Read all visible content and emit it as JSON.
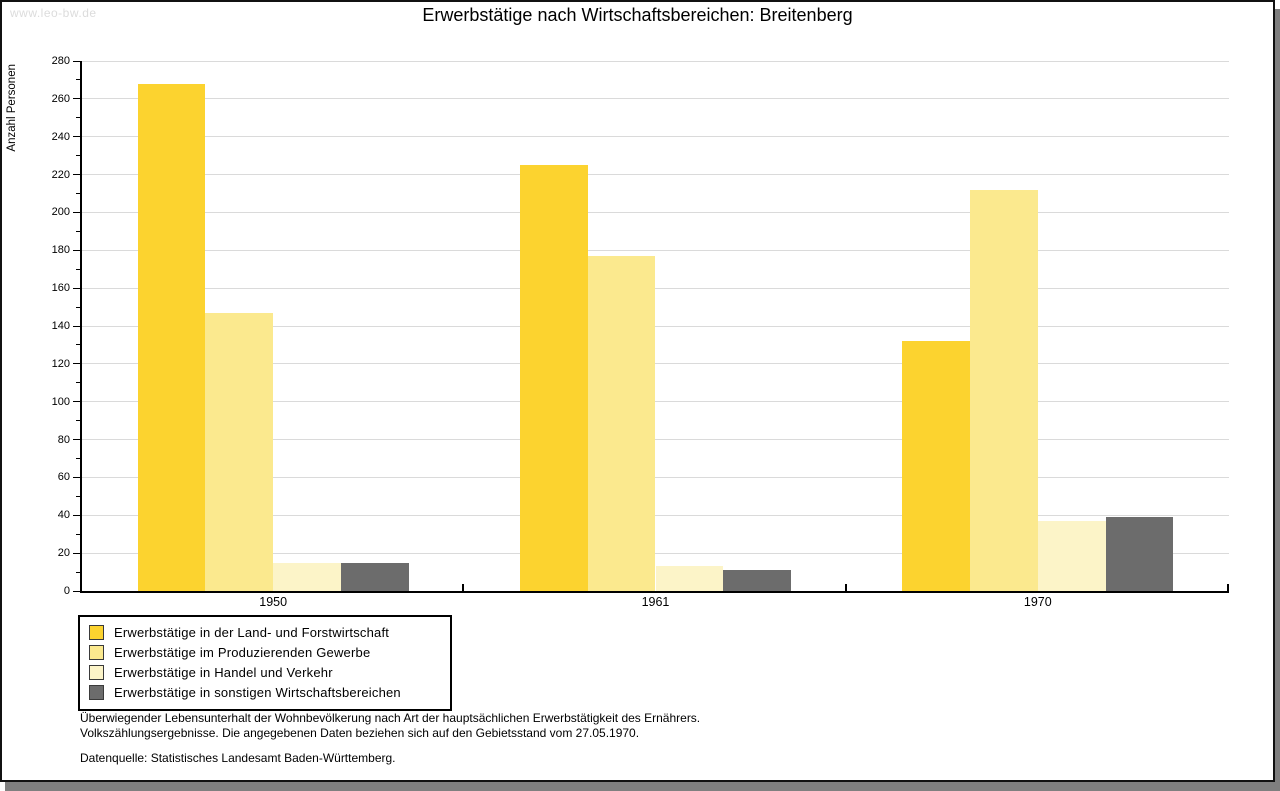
{
  "watermark": "www.leo-bw.de",
  "chart_data": {
    "type": "bar",
    "title": "Erwerbstätige nach Wirtschaftsbereichen: Breitenberg",
    "ylabel": "Anzahl Personen",
    "xlabel": "",
    "categories": [
      "1950",
      "1961",
      "1970"
    ],
    "series": [
      {
        "name": "Erwerbstätige in der Land- und Forstwirtschaft",
        "color": "#FCD32F",
        "values": [
          268,
          225,
          132
        ]
      },
      {
        "name": "Erwerbstätige im Produzierenden Gewerbe",
        "color": "#FBE98E",
        "values": [
          147,
          177,
          212
        ]
      },
      {
        "name": "Erwerbstätige in Handel und Verkehr",
        "color": "#FCF4C8",
        "values": [
          15,
          13,
          37
        ]
      },
      {
        "name": "Erwerbstätige in sonstigen Wirtschaftsbereichen",
        "color": "#6C6C6C",
        "values": [
          15,
          11,
          39
        ]
      }
    ],
    "ylim": [
      0,
      280
    ],
    "ytick_step": 20,
    "ytick_minor_step": 10,
    "grid": "horizontal-major",
    "gridline_color": "#dadada",
    "legend_position": "bottom-left"
  },
  "footnotes": {
    "line1": "Überwiegender Lebensunterhalt der Wohnbevölkerung nach Art der hauptsächlichen Erwerbstätigkeit des Ernährers.",
    "line2": "Volkszählungsergebnisse. Die angegebenen Daten beziehen sich auf den Gebietsstand vom 27.05.1970.",
    "source": "Datenquelle: Statistisches Landesamt Baden-Württemberg."
  }
}
